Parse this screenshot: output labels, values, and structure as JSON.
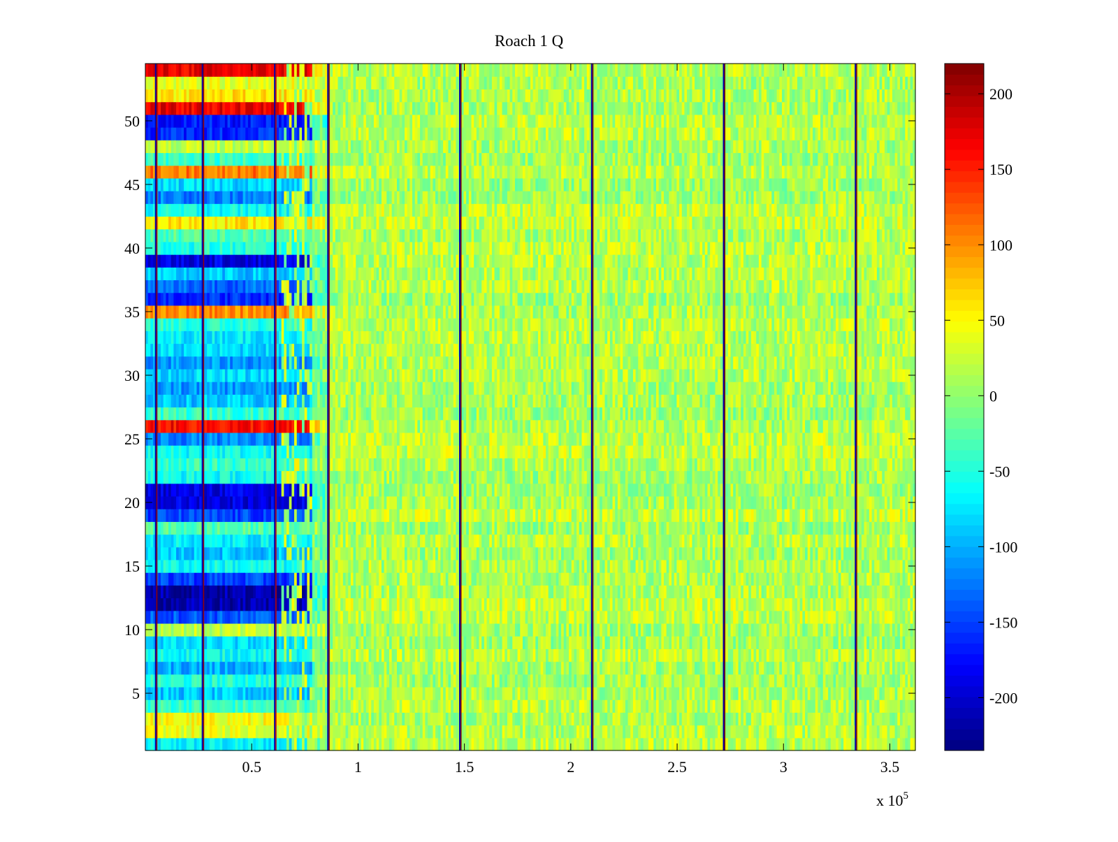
{
  "chart_data": {
    "type": "heatmap",
    "title": "Roach 1 Q",
    "xlabel": "",
    "ylabel": "",
    "x_range": [
      0,
      362000
    ],
    "y_range": [
      0.5,
      54.5
    ],
    "rows": 54,
    "x_scale_label": "x 10",
    "x_scale_exponent": "5",
    "x_ticks": [
      {
        "value": 50000,
        "label": "0.5"
      },
      {
        "value": 100000,
        "label": "1"
      },
      {
        "value": 150000,
        "label": "1.5"
      },
      {
        "value": 200000,
        "label": "2"
      },
      {
        "value": 250000,
        "label": "2.5"
      },
      {
        "value": 300000,
        "label": "3"
      },
      {
        "value": 350000,
        "label": "3.5"
      }
    ],
    "y_ticks": [
      {
        "value": 5,
        "label": "5"
      },
      {
        "value": 10,
        "label": "10"
      },
      {
        "value": 15,
        "label": "15"
      },
      {
        "value": 20,
        "label": "20"
      },
      {
        "value": 25,
        "label": "25"
      },
      {
        "value": 30,
        "label": "30"
      },
      {
        "value": 35,
        "label": "35"
      },
      {
        "value": 40,
        "label": "40"
      },
      {
        "value": 45,
        "label": "45"
      },
      {
        "value": 50,
        "label": "50"
      }
    ],
    "colorbar": {
      "colormap": "jet",
      "range": [
        -235,
        220
      ],
      "ticks": [
        {
          "value": 200,
          "label": "200"
        },
        {
          "value": 150,
          "label": "150"
        },
        {
          "value": 100,
          "label": "100"
        },
        {
          "value": 50,
          "label": "50"
        },
        {
          "value": 0,
          "label": "0"
        },
        {
          "value": -50,
          "label": "-50"
        },
        {
          "value": -100,
          "label": "-100"
        },
        {
          "value": -150,
          "label": "-150"
        },
        {
          "value": -200,
          "label": "-200"
        }
      ]
    },
    "early_region_end": 78000,
    "transition_end": 86000,
    "background_value": 15,
    "row_offsets_early": [
      {
        "row": 1,
        "value": -70
      },
      {
        "row": 2,
        "value": 40
      },
      {
        "row": 3,
        "value": 45
      },
      {
        "row": 4,
        "value": -40
      },
      {
        "row": 5,
        "value": -90
      },
      {
        "row": 6,
        "value": -50
      },
      {
        "row": 7,
        "value": -100
      },
      {
        "row": 8,
        "value": -60
      },
      {
        "row": 9,
        "value": -80
      },
      {
        "row": 10,
        "value": 20
      },
      {
        "row": 11,
        "value": -140
      },
      {
        "row": 12,
        "value": -215
      },
      {
        "row": 13,
        "value": -215
      },
      {
        "row": 14,
        "value": -150
      },
      {
        "row": 15,
        "value": -60
      },
      {
        "row": 16,
        "value": -90
      },
      {
        "row": 17,
        "value": -70
      },
      {
        "row": 18,
        "value": -30
      },
      {
        "row": 19,
        "value": -150
      },
      {
        "row": 20,
        "value": -190
      },
      {
        "row": 21,
        "value": -190
      },
      {
        "row": 22,
        "value": -60
      },
      {
        "row": 23,
        "value": -40
      },
      {
        "row": 24,
        "value": -60
      },
      {
        "row": 25,
        "value": -120
      },
      {
        "row": 26,
        "value": 160
      },
      {
        "row": 27,
        "value": -40
      },
      {
        "row": 28,
        "value": -90
      },
      {
        "row": 29,
        "value": -110
      },
      {
        "row": 30,
        "value": -80
      },
      {
        "row": 31,
        "value": -110
      },
      {
        "row": 32,
        "value": -80
      },
      {
        "row": 33,
        "value": -70
      },
      {
        "row": 34,
        "value": -50
      },
      {
        "row": 35,
        "value": 100
      },
      {
        "row": 36,
        "value": -160
      },
      {
        "row": 37,
        "value": -130
      },
      {
        "row": 38,
        "value": -90
      },
      {
        "row": 39,
        "value": -190
      },
      {
        "row": 40,
        "value": -50
      },
      {
        "row": 41,
        "value": -30
      },
      {
        "row": 42,
        "value": 60
      },
      {
        "row": 43,
        "value": -60
      },
      {
        "row": 44,
        "value": -120
      },
      {
        "row": 45,
        "value": -80
      },
      {
        "row": 46,
        "value": 110
      },
      {
        "row": 47,
        "value": -40
      },
      {
        "row": 48,
        "value": 20
      },
      {
        "row": 49,
        "value": -160
      },
      {
        "row": 50,
        "value": -170
      },
      {
        "row": 51,
        "value": 170
      },
      {
        "row": 52,
        "value": 60
      },
      {
        "row": 53,
        "value": 40
      },
      {
        "row": 54,
        "value": 170
      }
    ],
    "spike_lines": [
      {
        "x": 5000,
        "value": 210
      },
      {
        "x": 27000,
        "value": 210
      },
      {
        "x": 61000,
        "value": 190
      },
      {
        "x": 86000,
        "value": 220
      },
      {
        "x": 148000,
        "value": 220
      },
      {
        "x": 210000,
        "value": 220
      },
      {
        "x": 272000,
        "value": 220
      },
      {
        "x": 334000,
        "value": 220
      }
    ]
  }
}
